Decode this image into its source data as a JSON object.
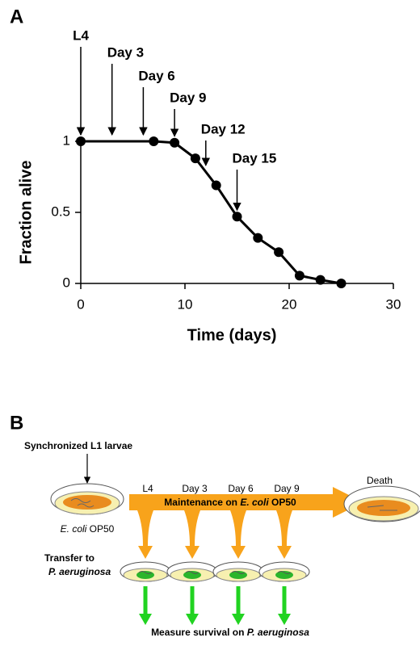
{
  "panel_labels": [
    "A",
    "B"
  ],
  "chart_data": {
    "type": "line",
    "xlabel": "Time (days)",
    "ylabel": "Fraction alive",
    "x": [
      0,
      7,
      9,
      11,
      13,
      15,
      17,
      19,
      21,
      23,
      25
    ],
    "values": [
      1,
      1,
      0.99,
      0.88,
      0.69,
      0.47,
      0.32,
      0.22,
      0.055,
      0.025,
      0
    ],
    "color": "#000000",
    "xlim": [
      0,
      30
    ],
    "xticks": [
      0,
      10,
      20,
      30
    ],
    "ylim": [
      0,
      1
    ],
    "yticks": [
      0,
      0.5,
      1
    ],
    "annotations": [
      {
        "text": "L4",
        "x": 0
      },
      {
        "text": "Day 3",
        "x": 3
      },
      {
        "text": "Day 6",
        "x": 6
      },
      {
        "text": "Day 9",
        "x": 9
      },
      {
        "text": "Day 12",
        "x": 12
      },
      {
        "text": "Day 15",
        "x": 15
      }
    ]
  },
  "diagram": {
    "start": "Synchronized L1 larvae",
    "start_dish": [
      "E. coli",
      " OP50"
    ],
    "maintenance": [
      "Maintenance on ",
      "E. coli",
      " OP50"
    ],
    "timepoints": [
      "L4",
      "Day 3",
      "Day 6",
      "Day 9"
    ],
    "end": "Death",
    "transfer": [
      "Transfer to",
      "P. aeruginosa"
    ],
    "measure": [
      "Measure survival on ",
      "P. aeruginosa"
    ]
  }
}
